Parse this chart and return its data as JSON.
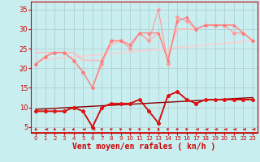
{
  "background_color": "#c8eef0",
  "grid_color": "#b0c8ca",
  "xlabel": "Vent moyen/en rafales ( kn/h )",
  "xlabel_color": "#cc0000",
  "xlabel_fontsize": 7,
  "tick_color": "#cc0000",
  "ylim": [
    3.5,
    37
  ],
  "xlim": [
    -0.5,
    23.5
  ],
  "yticks": [
    5,
    10,
    15,
    20,
    25,
    30,
    35
  ],
  "xticks": [
    0,
    1,
    2,
    3,
    4,
    5,
    6,
    7,
    8,
    9,
    10,
    11,
    12,
    13,
    14,
    15,
    16,
    17,
    18,
    19,
    20,
    21,
    22,
    23
  ],
  "line1_x": [
    0,
    1,
    2,
    3,
    4,
    5,
    6,
    7,
    8,
    9,
    10,
    11,
    12,
    13,
    14,
    15,
    16,
    17,
    18,
    19,
    20,
    21,
    22,
    23
  ],
  "line1_y": [
    21,
    23,
    24,
    24,
    22,
    19,
    15,
    21,
    27,
    27,
    25,
    29,
    27,
    35,
    21,
    33,
    32,
    30,
    31,
    31,
    31,
    29,
    29,
    27
  ],
  "line1_color": "#ff9999",
  "line1_marker": "D",
  "line1_markersize": 2,
  "line1_linewidth": 0.8,
  "line2_x": [
    0,
    1,
    2,
    3,
    4,
    5,
    6,
    7,
    8,
    9,
    10,
    11,
    12,
    13,
    14,
    15,
    16,
    17,
    18,
    19,
    20,
    21,
    22,
    23
  ],
  "line2_y": [
    21,
    23,
    24,
    24,
    22,
    19,
    15,
    22,
    27,
    27,
    26,
    29,
    29,
    29,
    22,
    32,
    33,
    30,
    31,
    31,
    31,
    31,
    29,
    27
  ],
  "line2_color": "#ff7777",
  "line2_marker": "^",
  "line2_markersize": 2,
  "line2_linewidth": 0.8,
  "line3_x": [
    0,
    1,
    2,
    3,
    4,
    5,
    6,
    7,
    8,
    9,
    10,
    11,
    12,
    13,
    14,
    15,
    16,
    17,
    18,
    19,
    20,
    21,
    22,
    23
  ],
  "line3_y": [
    24,
    24,
    24,
    24,
    24,
    22,
    22,
    22,
    26,
    27,
    26,
    29,
    27,
    29,
    23,
    30,
    30,
    30,
    31,
    31,
    31,
    31,
    29,
    27
  ],
  "line3_color": "#ffbbbb",
  "line3_marker": "none",
  "line3_markersize": 0,
  "line3_linewidth": 1.2,
  "line4_x": [
    0,
    1,
    2,
    3,
    4,
    5,
    6,
    7,
    8,
    9,
    10,
    11,
    12,
    13,
    14,
    15,
    16,
    17,
    18,
    19,
    20,
    21,
    22,
    23
  ],
  "line4_y": [
    9,
    9,
    9,
    9,
    10,
    9,
    5,
    10,
    11,
    11,
    11,
    12,
    9,
    6,
    13,
    14,
    12,
    11,
    12,
    12,
    12,
    12,
    12,
    12
  ],
  "line4_color": "#cc0000",
  "line4_marker": "D",
  "line4_markersize": 2,
  "line4_linewidth": 0.8,
  "line5_x": [
    0,
    1,
    2,
    3,
    4,
    5,
    6,
    7,
    8,
    9,
    10,
    11,
    12,
    13,
    14,
    15,
    16,
    17,
    18,
    19,
    20,
    21,
    22,
    23
  ],
  "line5_y": [
    9,
    9,
    9,
    9,
    10,
    9,
    5,
    10,
    11,
    11,
    11,
    12,
    9,
    6,
    13,
    14,
    12,
    11,
    12,
    12,
    12,
    12,
    12,
    12
  ],
  "line5_color": "#ee1111",
  "line5_marker": "^",
  "line5_markersize": 2,
  "line5_linewidth": 0.8,
  "line6_x": [
    0,
    1,
    2,
    3,
    4,
    5,
    6,
    7,
    8,
    9,
    10,
    11,
    12,
    13,
    14,
    15,
    16,
    17,
    18,
    19,
    20,
    21,
    22,
    23
  ],
  "line6_y": [
    9,
    9,
    9,
    9,
    10,
    9,
    5,
    10,
    11,
    11,
    11,
    12,
    9,
    6,
    13,
    14,
    12,
    11,
    12,
    12,
    12,
    12,
    12,
    12
  ],
  "line6_color": "#990000",
  "line6_marker": "none",
  "line6_markersize": 0,
  "line6_linewidth": 1.2,
  "trend1_x": [
    0,
    23
  ],
  "trend1_y": [
    22.0,
    27.0
  ],
  "trend1_color": "#ffcccc",
  "trend1_linewidth": 1.0,
  "trend2_x": [
    0,
    23
  ],
  "trend2_y": [
    9.5,
    12.5
  ],
  "trend2_color": "#880000",
  "trend2_linewidth": 1.0,
  "axisline_color": "#cc0000",
  "arrow_color": "#cc0000",
  "arrow_angles_deg": [
    225,
    270,
    225,
    225,
    225,
    270,
    270,
    315,
    315,
    315,
    315,
    315,
    315,
    0,
    315,
    315,
    315,
    270,
    270,
    270,
    270,
    270,
    270,
    270
  ]
}
